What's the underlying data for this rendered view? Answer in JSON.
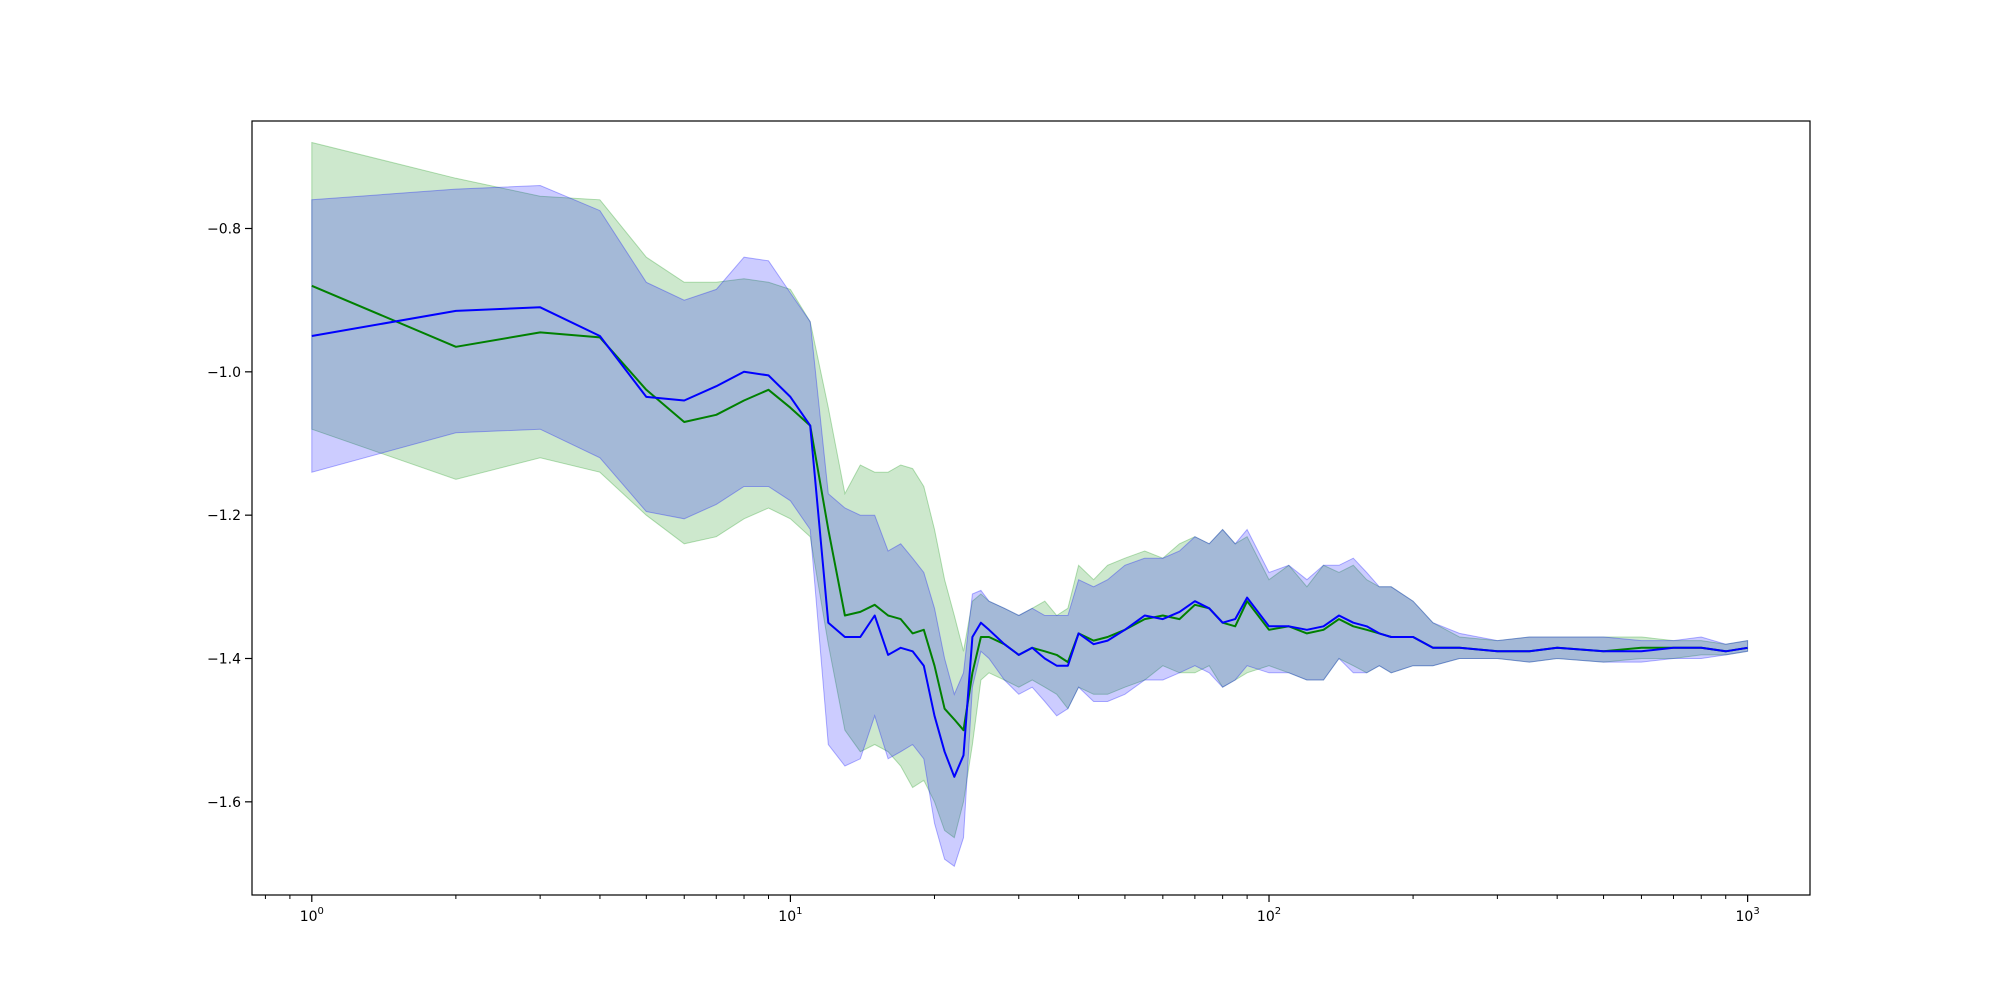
{
  "chart_data": {
    "type": "line",
    "title": "",
    "xlabel": "",
    "ylabel": "",
    "xscale": "log",
    "xlim": [
      0.75,
      1350
    ],
    "ylim": [
      -1.73,
      -0.65
    ],
    "grid": false,
    "legend": "none",
    "x_ticks": [
      {
        "value": 1,
        "base": "10",
        "exp": "0"
      },
      {
        "value": 10,
        "base": "10",
        "exp": "1"
      },
      {
        "value": 100,
        "base": "10",
        "exp": "2"
      },
      {
        "value": 1000,
        "base": "10",
        "exp": "3"
      }
    ],
    "y_ticks": [
      {
        "value": -1.6,
        "label": "−1.6"
      },
      {
        "value": -1.4,
        "label": "−1.4"
      },
      {
        "value": -1.2,
        "label": "−1.2"
      },
      {
        "value": -1.0,
        "label": "−1.0"
      },
      {
        "value": -0.8,
        "label": "−0.8"
      }
    ],
    "series": [
      {
        "color": "#008000",
        "band_color": "#2ca02c",
        "band_opacity": 0.24,
        "x": [
          1,
          2,
          3,
          4,
          5,
          6,
          7,
          8,
          9,
          10,
          11,
          12,
          13,
          14,
          15,
          16,
          17,
          18,
          19,
          20,
          21,
          22,
          23,
          24,
          25,
          26,
          28,
          30,
          32,
          34,
          36,
          38,
          40,
          43,
          46,
          50,
          55,
          60,
          65,
          70,
          75,
          80,
          85,
          90,
          100,
          110,
          120,
          130,
          140,
          150,
          160,
          170,
          180,
          200,
          220,
          250,
          300,
          350,
          400,
          500,
          600,
          700,
          800,
          900,
          1000
        ],
        "y": [
          -0.88,
          -0.965,
          -0.945,
          -0.952,
          -1.025,
          -1.07,
          -1.06,
          -1.04,
          -1.025,
          -1.05,
          -1.075,
          -1.22,
          -1.34,
          -1.335,
          -1.325,
          -1.34,
          -1.345,
          -1.365,
          -1.36,
          -1.41,
          -1.47,
          -1.485,
          -1.5,
          -1.42,
          -1.37,
          -1.37,
          -1.38,
          -1.395,
          -1.385,
          -1.39,
          -1.395,
          -1.405,
          -1.365,
          -1.375,
          -1.37,
          -1.36,
          -1.345,
          -1.34,
          -1.345,
          -1.325,
          -1.33,
          -1.35,
          -1.355,
          -1.32,
          -1.36,
          -1.355,
          -1.365,
          -1.36,
          -1.345,
          -1.355,
          -1.36,
          -1.365,
          -1.37,
          -1.37,
          -1.385,
          -1.385,
          -1.39,
          -1.39,
          -1.385,
          -1.39,
          -1.385,
          -1.385,
          -1.385,
          -1.39,
          -1.385
        ],
        "upper": [
          -0.68,
          -0.73,
          -0.755,
          -0.76,
          -0.84,
          -0.875,
          -0.875,
          -0.87,
          -0.875,
          -0.885,
          -0.93,
          -1.05,
          -1.17,
          -1.13,
          -1.14,
          -1.14,
          -1.13,
          -1.135,
          -1.16,
          -1.22,
          -1.29,
          -1.34,
          -1.39,
          -1.32,
          -1.31,
          -1.32,
          -1.33,
          -1.34,
          -1.33,
          -1.32,
          -1.34,
          -1.33,
          -1.27,
          -1.29,
          -1.27,
          -1.26,
          -1.25,
          -1.26,
          -1.24,
          -1.23,
          -1.24,
          -1.22,
          -1.24,
          -1.23,
          -1.29,
          -1.27,
          -1.3,
          -1.27,
          -1.28,
          -1.27,
          -1.29,
          -1.3,
          -1.3,
          -1.32,
          -1.35,
          -1.37,
          -1.375,
          -1.37,
          -1.37,
          -1.37,
          -1.37,
          -1.375,
          -1.375,
          -1.38,
          -1.375
        ],
        "lower": [
          -1.08,
          -1.15,
          -1.12,
          -1.14,
          -1.2,
          -1.24,
          -1.23,
          -1.205,
          -1.19,
          -1.205,
          -1.23,
          -1.38,
          -1.5,
          -1.53,
          -1.52,
          -1.53,
          -1.55,
          -1.58,
          -1.57,
          -1.6,
          -1.64,
          -1.65,
          -1.6,
          -1.52,
          -1.43,
          -1.42,
          -1.43,
          -1.44,
          -1.43,
          -1.44,
          -1.45,
          -1.47,
          -1.44,
          -1.45,
          -1.45,
          -1.44,
          -1.43,
          -1.41,
          -1.42,
          -1.42,
          -1.41,
          -1.44,
          -1.43,
          -1.42,
          -1.41,
          -1.42,
          -1.43,
          -1.43,
          -1.4,
          -1.41,
          -1.42,
          -1.41,
          -1.42,
          -1.41,
          -1.41,
          -1.4,
          -1.4,
          -1.405,
          -1.4,
          -1.405,
          -1.4,
          -1.4,
          -1.395,
          -1.395,
          -1.39
        ]
      },
      {
        "color": "#0000ff",
        "band_color": "#0000ff",
        "band_opacity": 0.2,
        "x": [
          1,
          2,
          3,
          4,
          5,
          6,
          7,
          8,
          9,
          10,
          11,
          12,
          13,
          14,
          15,
          16,
          17,
          18,
          19,
          20,
          21,
          22,
          23,
          24,
          25,
          26,
          28,
          30,
          32,
          34,
          36,
          38,
          40,
          43,
          46,
          50,
          55,
          60,
          65,
          70,
          75,
          80,
          85,
          90,
          100,
          110,
          120,
          130,
          140,
          150,
          160,
          170,
          180,
          200,
          220,
          250,
          300,
          350,
          400,
          500,
          600,
          700,
          800,
          900,
          1000
        ],
        "y": [
          -0.95,
          -0.915,
          -0.91,
          -0.95,
          -1.035,
          -1.04,
          -1.02,
          -1.0,
          -1.005,
          -1.035,
          -1.075,
          -1.35,
          -1.37,
          -1.37,
          -1.34,
          -1.395,
          -1.385,
          -1.39,
          -1.41,
          -1.48,
          -1.53,
          -1.565,
          -1.535,
          -1.37,
          -1.35,
          -1.36,
          -1.38,
          -1.395,
          -1.385,
          -1.4,
          -1.41,
          -1.41,
          -1.365,
          -1.38,
          -1.375,
          -1.36,
          -1.34,
          -1.345,
          -1.335,
          -1.32,
          -1.33,
          -1.35,
          -1.345,
          -1.315,
          -1.355,
          -1.355,
          -1.36,
          -1.355,
          -1.34,
          -1.35,
          -1.355,
          -1.365,
          -1.37,
          -1.37,
          -1.385,
          -1.385,
          -1.39,
          -1.39,
          -1.385,
          -1.39,
          -1.39,
          -1.385,
          -1.385,
          -1.39,
          -1.385
        ],
        "upper": [
          -0.76,
          -0.745,
          -0.74,
          -0.775,
          -0.875,
          -0.9,
          -0.885,
          -0.84,
          -0.845,
          -0.89,
          -0.93,
          -1.17,
          -1.19,
          -1.2,
          -1.2,
          -1.25,
          -1.24,
          -1.26,
          -1.28,
          -1.33,
          -1.4,
          -1.45,
          -1.42,
          -1.31,
          -1.305,
          -1.32,
          -1.33,
          -1.34,
          -1.33,
          -1.34,
          -1.34,
          -1.34,
          -1.29,
          -1.3,
          -1.29,
          -1.27,
          -1.26,
          -1.26,
          -1.25,
          -1.23,
          -1.24,
          -1.22,
          -1.24,
          -1.22,
          -1.28,
          -1.27,
          -1.29,
          -1.27,
          -1.27,
          -1.26,
          -1.28,
          -1.3,
          -1.3,
          -1.32,
          -1.35,
          -1.365,
          -1.375,
          -1.37,
          -1.37,
          -1.37,
          -1.375,
          -1.375,
          -1.37,
          -1.38,
          -1.375
        ],
        "lower": [
          -1.14,
          -1.085,
          -1.08,
          -1.12,
          -1.195,
          -1.205,
          -1.185,
          -1.16,
          -1.16,
          -1.18,
          -1.22,
          -1.52,
          -1.55,
          -1.54,
          -1.48,
          -1.54,
          -1.53,
          -1.52,
          -1.54,
          -1.63,
          -1.68,
          -1.69,
          -1.65,
          -1.44,
          -1.39,
          -1.4,
          -1.43,
          -1.45,
          -1.44,
          -1.46,
          -1.48,
          -1.47,
          -1.44,
          -1.46,
          -1.46,
          -1.45,
          -1.43,
          -1.43,
          -1.42,
          -1.41,
          -1.42,
          -1.44,
          -1.43,
          -1.41,
          -1.42,
          -1.42,
          -1.43,
          -1.43,
          -1.4,
          -1.42,
          -1.42,
          -1.41,
          -1.42,
          -1.41,
          -1.41,
          -1.4,
          -1.4,
          -1.405,
          -1.4,
          -1.405,
          -1.405,
          -1.4,
          -1.4,
          -1.395,
          -1.39
        ]
      }
    ]
  }
}
